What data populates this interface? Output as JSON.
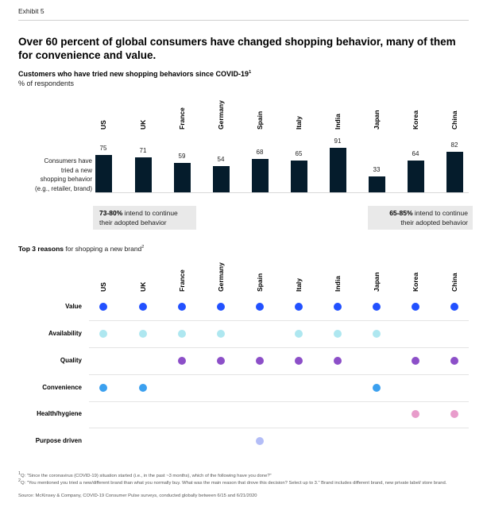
{
  "exhibit": "Exhibit 5",
  "headline": "Over 60 percent of global consumers have changed shopping behavior, many of them for convenience and value.",
  "chart_data": [
    {
      "type": "bar",
      "title": "Customers who have tried new shopping behaviors since COVID-19",
      "title_footnote": "1",
      "unit": "% of respondents",
      "row_label": "Consumers have tried a new shopping behavior (e.g., retailer, brand)",
      "row_label_lines": [
        "Consumers have",
        "tried a new",
        "shopping behavior",
        "(e.g., retailer, brand)"
      ],
      "categories": [
        "US",
        "UK",
        "France",
        "Germany",
        "Spain",
        "Italy",
        "India",
        "Japan",
        "Korea",
        "China"
      ],
      "values": [
        75,
        71,
        59,
        54,
        68,
        65,
        91,
        33,
        64,
        82
      ],
      "bar_color": "#051c2c",
      "annotations": [
        {
          "bold": "73-80%",
          "text": " intend to continue",
          "line2": "their adopted behavior"
        },
        {
          "bold": "65-85%",
          "text": " intend to continue",
          "line2": "their adopted behavior"
        }
      ]
    },
    {
      "type": "dot-matrix",
      "title_bold": "Top 3 reasons",
      "title_rest": " for shopping a new brand",
      "title_footnote": "2",
      "categories": [
        "US",
        "UK",
        "France",
        "Germany",
        "Spain",
        "Italy",
        "India",
        "Japan",
        "Korea",
        "China"
      ],
      "rows": [
        {
          "label": "Value",
          "color": "#2251ff",
          "countries": [
            "US",
            "UK",
            "France",
            "Germany",
            "Spain",
            "Italy",
            "India",
            "Japan",
            "Korea",
            "China"
          ]
        },
        {
          "label": "Availability",
          "color": "#aee7f0",
          "countries": [
            "US",
            "UK",
            "France",
            "Germany",
            "Italy",
            "India",
            "Japan"
          ]
        },
        {
          "label": "Quality",
          "color": "#8c4fc8",
          "countries": [
            "France",
            "Germany",
            "Spain",
            "Italy",
            "India",
            "Korea",
            "China"
          ]
        },
        {
          "label": "Convenience",
          "color": "#3ba0ef",
          "countries": [
            "US",
            "UK",
            "Japan"
          ]
        },
        {
          "label": "Health/hygiene",
          "color": "#e89ccb",
          "countries": [
            "Korea",
            "China"
          ]
        },
        {
          "label": "Purpose driven",
          "color": "#b3bdf7",
          "countries": [
            "Spain"
          ]
        }
      ]
    }
  ],
  "footnotes": [
    {
      "mark": "1",
      "text": "Q: \"Since the coronavirus (COVID-19) situation started (i.e., in the past ~3 months), which of the following have you done?\""
    },
    {
      "mark": "2",
      "text": "Q: \"You mentioned you tried a new/different brand than what you normally buy. What was the main reason that drove this decision? Select up to 3.\" Brand includes different brand, new private label/ store brand."
    }
  ],
  "source": "Source: McKinsey & Company, COVID-19 Consumer Pulse surveys, conducted globally between 6/15 and 6/21/2020"
}
